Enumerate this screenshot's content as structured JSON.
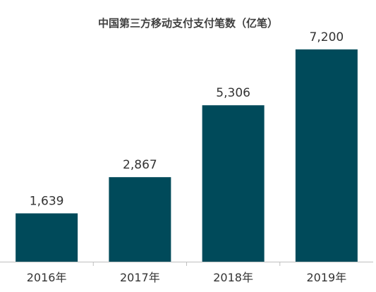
{
  "chart_data": {
    "type": "bar",
    "title": "中国第三方移动支付支付笔数（亿笔）",
    "categories": [
      "2016年",
      "2017年",
      "2018年",
      "2019年"
    ],
    "values": [
      1639,
      2867,
      5306,
      7200
    ],
    "value_labels": [
      "1,639",
      "2,867",
      "5,306",
      "7,200"
    ],
    "xlabel": "",
    "ylabel": "",
    "ylim": [
      0,
      7800
    ],
    "grid": false,
    "legend": "none",
    "bar_color": "#004a5a",
    "axis_color": "#bfbfbf"
  }
}
